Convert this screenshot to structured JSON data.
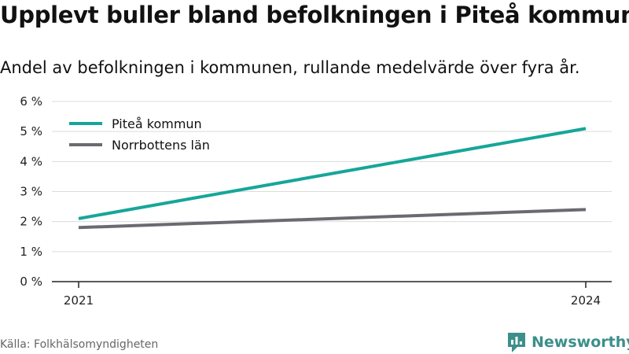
{
  "title": "Upplevt buller bland befolkningen i Piteå kommun",
  "subtitle": "Andel av befolkningen i kommunen, rullande medelvärde över fyra år.",
  "source": "Källa: Folkhälsomyndigheten",
  "brand": "Newsworthy",
  "colors": {
    "pitea": "#16a699",
    "norrbotten": "#6b6a70",
    "brand": "#3c8f8a"
  },
  "chart_data": {
    "type": "line",
    "title": "Upplevt buller bland befolkningen i Piteå kommun",
    "subtitle": "Andel av befolkningen i kommunen, rullande medelvärde över fyra år.",
    "x": [
      2021,
      2024
    ],
    "x_tick_labels": [
      "2021",
      "2024"
    ],
    "y_ticks": [
      0,
      1,
      2,
      3,
      4,
      5,
      6
    ],
    "y_tick_labels": [
      "0 %",
      "1 %",
      "2 %",
      "3 %",
      "4 %",
      "5 %",
      "6 %"
    ],
    "ylim": [
      0,
      6
    ],
    "grid": true,
    "legend_position": "top-left",
    "series": [
      {
        "name": "Piteå kommun",
        "values": [
          2.1,
          5.1
        ],
        "color": "#16a699"
      },
      {
        "name": "Norrbottens län",
        "values": [
          1.8,
          2.4
        ],
        "color": "#6b6a70"
      }
    ]
  }
}
